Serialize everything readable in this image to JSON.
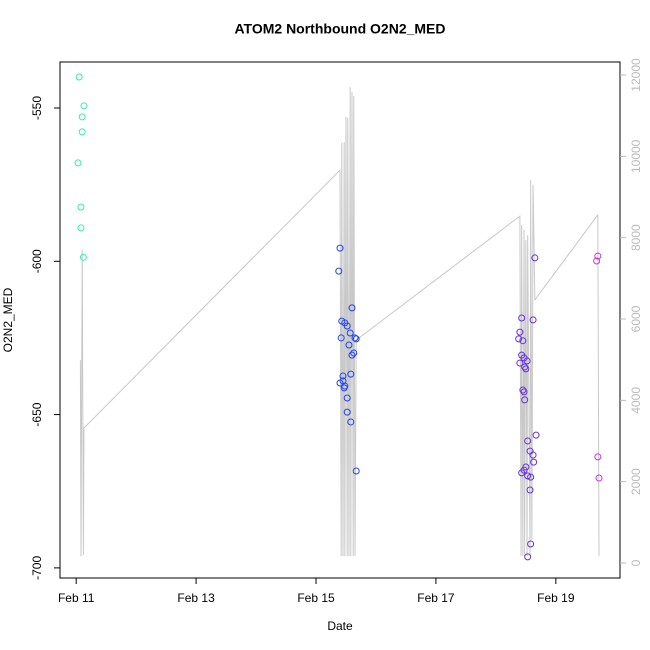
{
  "chart_data": {
    "type": "scatter",
    "title": "ATOM2 Northbound O2N2_MED",
    "x_label": "Date",
    "y_label": "O2N2_MED",
    "xlim": [
      10.73,
      20.07
    ],
    "ylim": [
      -703.3,
      -535
    ],
    "xticks": [
      {
        "value": 11,
        "label": "Feb 11"
      },
      {
        "value": 13,
        "label": "Feb 13"
      },
      {
        "value": 15,
        "label": "Feb 15"
      },
      {
        "value": 17,
        "label": "Feb 17"
      },
      {
        "value": 19,
        "label": "Feb 19"
      }
    ],
    "yticks": [
      -700,
      -650,
      -600,
      -550
    ],
    "y2lim": [
      -369,
      12320
    ],
    "y2ticks": [
      0,
      2000,
      4000,
      6000,
      8000,
      10000,
      12000
    ],
    "series": [
      {
        "color": "#33eeaa",
        "x": [
          11.05,
          11.13,
          11.1,
          11.1,
          11.03,
          11.08,
          11.08,
          11.12
        ],
        "values": [
          -539.9,
          -549.3,
          -552.9,
          -557.8,
          -567.9,
          -582.3,
          -589.1,
          -598.7
        ]
      },
      {
        "color": "#2244ee",
        "x": [
          15.4,
          15.38,
          15.43,
          15.48,
          15.52,
          15.42,
          15.6,
          15.57,
          15.65,
          15.67,
          15.55,
          15.63,
          15.6,
          15.58,
          15.45,
          15.45,
          15.4,
          15.48,
          15.47,
          15.52,
          15.52,
          15.58,
          15.67
        ],
        "values": [
          -595.7,
          -603.2,
          -619.5,
          -620.1,
          -621.1,
          -625.0,
          -615.2,
          -623.4,
          -625.0,
          -625.3,
          -627.3,
          -629.9,
          -630.6,
          -636.8,
          -637.4,
          -639.0,
          -639.7,
          -640.7,
          -641.3,
          -644.6,
          -649.2,
          -652.4,
          -668.4
        ]
      },
      {
        "color": "#6633dd",
        "x": [
          18.43,
          18.4,
          18.38,
          18.45,
          18.43,
          18.47,
          18.52,
          18.4,
          18.48,
          18.5,
          18.45,
          18.47,
          18.48,
          18.62,
          18.65,
          18.67,
          18.53,
          18.57,
          18.62,
          18.63,
          18.5,
          18.43,
          18.47,
          18.53,
          18.58,
          18.57,
          18.58,
          18.53
        ],
        "values": [
          -618.5,
          -623.1,
          -625.3,
          -625.9,
          -630.6,
          -631.5,
          -632.5,
          -633.2,
          -634.5,
          -635.1,
          -642.0,
          -642.6,
          -645.2,
          -619.1,
          -598.9,
          -656.7,
          -658.6,
          -661.9,
          -663.2,
          -665.5,
          -667.1,
          -669.0,
          -668.1,
          -670.0,
          -670.4,
          -674.6,
          -692.2,
          -696.4
        ]
      },
      {
        "color": "#cc33dd",
        "x": [
          19.7,
          19.68,
          19.7,
          19.72
        ],
        "values": [
          -598.3,
          -599.9,
          -663.8,
          -670.7
        ]
      },
      {
        "type": "line",
        "axis": "y2",
        "color": "#c8c8c8",
        "x": [
          11.07,
          11.08,
          11.1,
          11.12,
          11.13,
          15.4,
          15.42,
          15.43,
          15.45,
          15.47,
          15.48,
          15.5,
          15.52,
          15.53,
          15.55,
          15.57,
          15.58,
          15.6,
          15.62,
          15.63,
          15.65,
          15.67,
          18.4,
          18.42,
          18.43,
          18.45,
          18.47,
          18.48,
          18.5,
          18.52,
          18.53,
          18.57,
          18.58,
          18.6,
          18.62,
          18.65,
          19.7,
          19.72
        ],
        "values": [
          4990,
          170,
          7700,
          200,
          3320,
          9660,
          170,
          10330,
          170,
          10350,
          170,
          10970,
          170,
          10950,
          170,
          11700,
          170,
          11580,
          170,
          11480,
          170,
          5480,
          8530,
          170,
          8310,
          170,
          8190,
          170,
          7940,
          170,
          8060,
          170,
          9420,
          570,
          9300,
          6470,
          8560,
          170
        ]
      }
    ]
  }
}
